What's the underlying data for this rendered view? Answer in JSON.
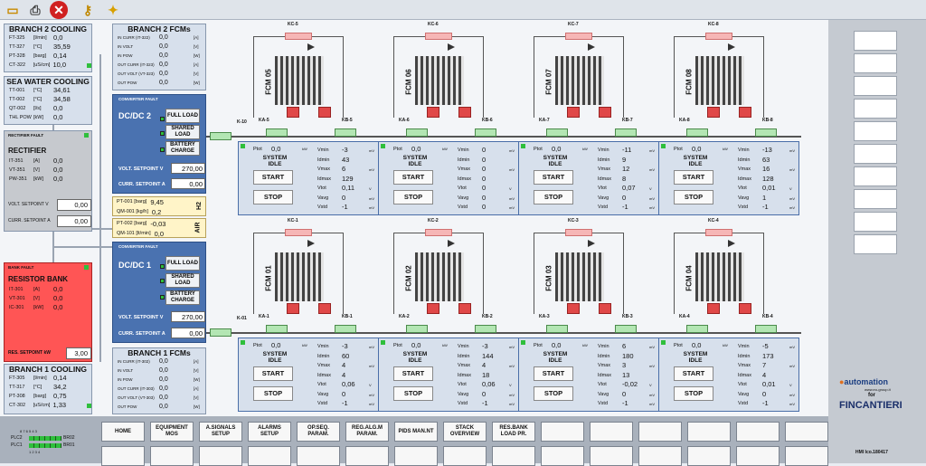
{
  "toolbar": {
    "icons": [
      "folder-icon",
      "printer-icon",
      "stop-icon",
      "key-icon",
      "clean-icon"
    ]
  },
  "branch2_cooling": {
    "title": "BRANCH 2 COOLING",
    "rows": [
      [
        "FT-325",
        "[l/min]",
        "0,0"
      ],
      [
        "TT-327",
        "[°C]",
        "35,59"
      ],
      [
        "PT-328",
        "[barg]",
        "0,14"
      ],
      [
        "CT-322",
        "[uS/cm]",
        "10,0"
      ]
    ]
  },
  "sea_water": {
    "title": "SEA WATER COOLING",
    "rows": [
      [
        "TT-001",
        "[°C]",
        "34,61"
      ],
      [
        "TT-002",
        "[°C]",
        "34,58"
      ],
      [
        "QT-002",
        "[l/s]",
        "0,0"
      ],
      [
        "THL POW",
        "[kW]",
        "0,0"
      ]
    ]
  },
  "rectifier": {
    "fault": "RECTIFIER FAULT",
    "title": "RECTIFIER",
    "rows": [
      [
        "IT-351",
        "[A]",
        "0,0"
      ],
      [
        "VT-351",
        "[V]",
        "0,0"
      ],
      [
        "PW-351",
        "[kW]",
        "0,0"
      ]
    ],
    "volt_label": "VOLT. SETPOINT V",
    "volt": "0,00",
    "curr_label": "CURR. SETPOINT A",
    "curr": "0,00"
  },
  "resistor": {
    "fault": "BANK FAULT",
    "title": "RESISTOR BANK",
    "rows": [
      [
        "IT-301",
        "[A]",
        "0,0"
      ],
      [
        "VT-301",
        "[V]",
        "0,0"
      ],
      [
        "IC-301",
        "[kW]",
        "0,0"
      ]
    ],
    "res_label": "RES. SETPOINT kW",
    "res": "3,00"
  },
  "branch1_cooling": {
    "title": "BRANCH 1 COOLING",
    "rows": [
      [
        "FT-305",
        "[l/min]",
        "0,14"
      ],
      [
        "TT-317",
        "[°C]",
        "34,2"
      ],
      [
        "PT-308",
        "[barg]",
        "0,75"
      ],
      [
        "CT-302",
        "[uS/cm]",
        "1,33"
      ]
    ]
  },
  "branch2_fcms": {
    "title": "BRANCH 2 FCMs",
    "rows": [
      [
        "IN CURR (IT-322)",
        "[A]"
      ],
      [
        "IN VOLT",
        "[V]"
      ],
      [
        "IN POW",
        "[W]"
      ],
      [
        "OUT CURR (IT-323)",
        "[A]"
      ],
      [
        "OUT VOLT (VT-323)",
        "[V]"
      ],
      [
        "OUT POW",
        "[W]"
      ]
    ],
    "vals": [
      "0,0",
      "0,0",
      "0,0",
      "0,0",
      "0,0",
      "0,0"
    ]
  },
  "branch1_fcms": {
    "title": "BRANCH 1 FCMs",
    "rows": [
      [
        "IN CURR (IT-302)",
        "[A]"
      ],
      [
        "IN VOLT",
        "[V]"
      ],
      [
        "IN POW",
        "[W]"
      ],
      [
        "OUT CURR (IT-303)",
        "[A]"
      ],
      [
        "OUT VOLT (VT-303)",
        "[V]"
      ],
      [
        "OUT POW",
        "[W]"
      ]
    ],
    "vals": [
      "0,0",
      "0,0",
      "0,0",
      "0,0",
      "0,0",
      "0,0"
    ]
  },
  "dcdc2": {
    "fault": "CONVERTER FAULT",
    "title": "DC/DC 2",
    "btn1": "FULL LOAD",
    "btn2": "SHARED LOAD",
    "btn3": "BATTERY CHARGE",
    "volt_label": "VOLT. SETPOINT V",
    "volt": "270,00",
    "curr_label": "CURR. SETPOINT A",
    "curr": "0,00"
  },
  "dcdc1": {
    "fault": "CONVERTER FAULT",
    "title": "DC/DC 1",
    "btn1": "FULL LOAD",
    "btn2": "SHARED LOAD",
    "btn3": "BATTERY CHARGE",
    "volt_label": "VOLT. SETPOINT V",
    "volt": "270,00",
    "curr_label": "CURR. SETPOINT A",
    "curr": "0,00"
  },
  "h2": {
    "tag": "H2",
    "r1": [
      "PT-001",
      "[barg]",
      "9,45"
    ],
    "r2": [
      "QM-001",
      "[kg/h]",
      "0,2"
    ]
  },
  "air": {
    "tag": "AIR",
    "r1": [
      "PT-002",
      "[barg]",
      "-0,03"
    ],
    "r2": [
      "QM-101",
      "[lt/min]",
      "0,0"
    ]
  },
  "top_fcms": [
    {
      "label": "FCM 05",
      "kc": "KC-5",
      "ka": "KA-5",
      "kb": "KB-5",
      "ptot": "0,0",
      "vmin": "-3",
      "idmin": "43",
      "vmax": "6",
      "idmax": "129",
      "vtot": "0,11",
      "vavg": "0",
      "vstd": "-1"
    },
    {
      "label": "FCM 06",
      "kc": "KC-6",
      "ka": "KA-6",
      "kb": "KB-6",
      "ptot": "0,0",
      "vmin": "0",
      "idmin": "0",
      "vmax": "0",
      "idmax": "0",
      "vtot": "0",
      "vavg": "0",
      "vstd": "0"
    },
    {
      "label": "FCM 07",
      "kc": "KC-7",
      "ka": "KA-7",
      "kb": "KB-7",
      "ptot": "0,0",
      "vmin": "-11",
      "idmin": "9",
      "vmax": "12",
      "idmax": "8",
      "vtot": "0,07",
      "vavg": "0",
      "vstd": "-1"
    },
    {
      "label": "FCM 08",
      "kc": "KC-8",
      "ka": "KA-8",
      "kb": "KB-8",
      "ptot": "0,0",
      "vmin": "-13",
      "idmin": "63",
      "vmax": "16",
      "idmax": "128",
      "vtot": "0,01",
      "vavg": "1",
      "vstd": "-1"
    }
  ],
  "bottom_fcms": [
    {
      "label": "FCM 01",
      "kc": "KC-1",
      "ka": "KA-1",
      "kb": "KB-1",
      "ptot": "0,0",
      "vmin": "-3",
      "idmin": "60",
      "vmax": "4",
      "idmax": "4",
      "vtot": "0,06",
      "vavg": "0",
      "vstd": "-1"
    },
    {
      "label": "FCM 02",
      "kc": "KC-2",
      "ka": "KA-2",
      "kb": "KB-2",
      "ptot": "0,0",
      "vmin": "-3",
      "idmin": "144",
      "vmax": "4",
      "idmax": "18",
      "vtot": "0,06",
      "vavg": "0",
      "vstd": "-1"
    },
    {
      "label": "FCM 03",
      "kc": "KC-3",
      "ka": "KA-3",
      "kb": "KB-3",
      "ptot": "0,0",
      "vmin": "6",
      "idmin": "180",
      "vmax": "3",
      "idmax": "13",
      "vtot": "-0,02",
      "vavg": "0",
      "vstd": "-1"
    },
    {
      "label": "FCM 04",
      "kc": "KC-4",
      "ka": "KA-4",
      "kb": "KB-4",
      "ptot": "0,0",
      "vmin": "-5",
      "idmin": "173",
      "vmax": "7",
      "idmax": "4",
      "vtot": "0,01",
      "vavg": "0",
      "vstd": "-1"
    }
  ],
  "kbus": {
    "top": "K-10",
    "bottom": "K-01"
  },
  "ctrl_labels": {
    "ptot": "Ptot",
    "system": "SYSTEM",
    "idle": "IDLE",
    "start": "START",
    "stop": "STOP",
    "vmin": "Vmin",
    "idmin": "Idmin",
    "vmax": "Vmax",
    "idmax": "Idmax",
    "vtot": "Vtot",
    "vavg": "Vavg",
    "vstd": "Vstd",
    "unit_w": "kW",
    "unit_mv": "mV",
    "unit_v": "V"
  },
  "bottom_nav": [
    "HOME",
    "EQUIPMENT MOS",
    "A.SIGNALS SETUP",
    "ALARMS SETUP",
    "OP.SEQ. PARAM.",
    "REG.ALG.M PARAM.",
    "PIDS MAN.NT",
    "STACK OVERVIEW",
    "RES.BANK LOAD PR."
  ],
  "plc": {
    "top": "PLC2",
    "bottom": "PLC1",
    "br2": "BR02",
    "br1": "BR01",
    "digits_top": "8 7 6 5 4 3",
    "digits_bottom": "1 2 3 4"
  },
  "brand": {
    "automation": "automation",
    "site": "www.eo-group.it",
    "for": "for",
    "fincantieri": "FINCANTIERI",
    "hmi": "HMI Ico.180417"
  },
  "colors": {
    "panel": "#d7e0ec",
    "dcdc": "#4a72b0",
    "fault_bg": "#ff5555",
    "ok": "#2fbf3c",
    "h2": "#fff4c8"
  }
}
